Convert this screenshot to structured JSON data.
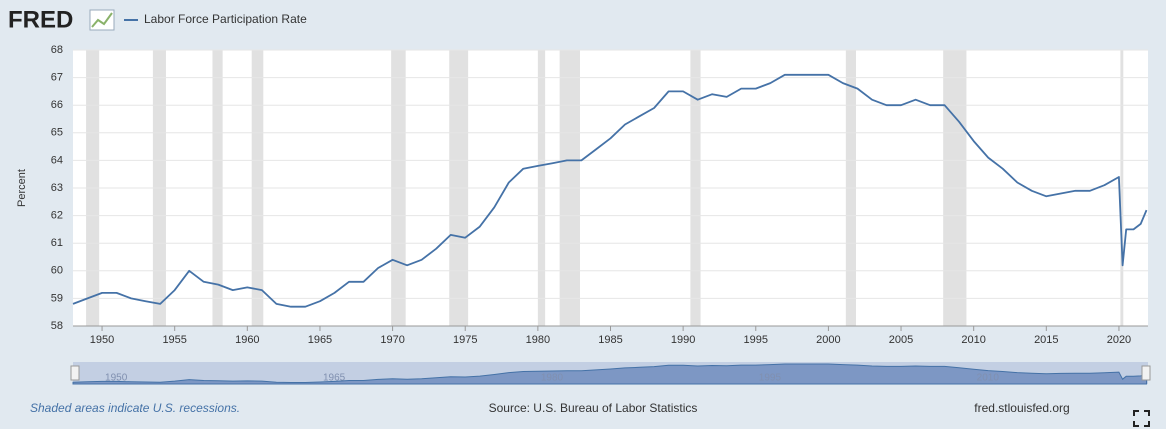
{
  "chart_data": {
    "type": "line",
    "logo": "FRED",
    "ylabel": "Percent",
    "footnote": "Shaded areas indicate U.S. recessions.",
    "source": "Source: U.S. Bureau of Labor Statistics",
    "site": "fred.stlouisfed.org",
    "xlim": [
      1948,
      2022
    ],
    "xticks": [
      1950,
      1955,
      1960,
      1965,
      1970,
      1975,
      1980,
      1985,
      1990,
      1995,
      2000,
      2005,
      2010,
      2015,
      2020
    ],
    "ylim": [
      58,
      68
    ],
    "yticks": [
      58,
      59,
      60,
      61,
      62,
      63,
      64,
      65,
      66,
      67,
      68
    ],
    "grid": true,
    "recessions": [
      [
        1948.9,
        1949.8
      ],
      [
        1953.5,
        1954.4
      ],
      [
        1957.6,
        1958.3
      ],
      [
        1960.3,
        1961.1
      ],
      [
        1969.9,
        1970.9
      ],
      [
        1973.9,
        1975.2
      ],
      [
        1980.0,
        1980.5
      ],
      [
        1981.5,
        1982.9
      ],
      [
        1990.5,
        1991.2
      ],
      [
        2001.2,
        2001.9
      ],
      [
        2007.9,
        2009.5
      ],
      [
        2020.1,
        2020.3
      ]
    ],
    "series": [
      {
        "name": "Labor Force Participation Rate",
        "color": "#4572a7",
        "x": [
          1948,
          1949,
          1950,
          1951,
          1952,
          1953,
          1954,
          1955,
          1956,
          1957,
          1958,
          1959,
          1960,
          1961,
          1962,
          1963,
          1964,
          1965,
          1966,
          1967,
          1968,
          1969,
          1970,
          1971,
          1972,
          1973,
          1974,
          1975,
          1976,
          1977,
          1978,
          1979,
          1980,
          1981,
          1982,
          1983,
          1984,
          1985,
          1986,
          1987,
          1988,
          1989,
          1990,
          1991,
          1992,
          1993,
          1994,
          1995,
          1996,
          1997,
          1998,
          1999,
          2000,
          2001,
          2002,
          2003,
          2004,
          2005,
          2006,
          2007,
          2008,
          2009,
          2010,
          2011,
          2012,
          2013,
          2014,
          2015,
          2016,
          2017,
          2018,
          2019,
          2020,
          2020.25,
          2020.5,
          2021,
          2021.5,
          2021.9
        ],
        "values": [
          58.8,
          59.0,
          59.2,
          59.2,
          59.0,
          58.9,
          58.8,
          59.3,
          60.0,
          59.6,
          59.5,
          59.3,
          59.4,
          59.3,
          58.8,
          58.7,
          58.7,
          58.9,
          59.2,
          59.6,
          59.6,
          60.1,
          60.4,
          60.2,
          60.4,
          60.8,
          61.3,
          61.2,
          61.6,
          62.3,
          63.2,
          63.7,
          63.8,
          63.9,
          64.0,
          64.0,
          64.4,
          64.8,
          65.3,
          65.6,
          65.9,
          66.5,
          66.5,
          66.2,
          66.4,
          66.3,
          66.6,
          66.6,
          66.8,
          67.1,
          67.1,
          67.1,
          67.1,
          66.8,
          66.6,
          66.2,
          66.0,
          66.0,
          66.2,
          66.0,
          66.0,
          65.4,
          64.7,
          64.1,
          63.7,
          63.2,
          62.9,
          62.7,
          62.8,
          62.9,
          62.9,
          63.1,
          63.4,
          60.2,
          61.5,
          61.5,
          61.7,
          62.2
        ]
      }
    ]
  }
}
